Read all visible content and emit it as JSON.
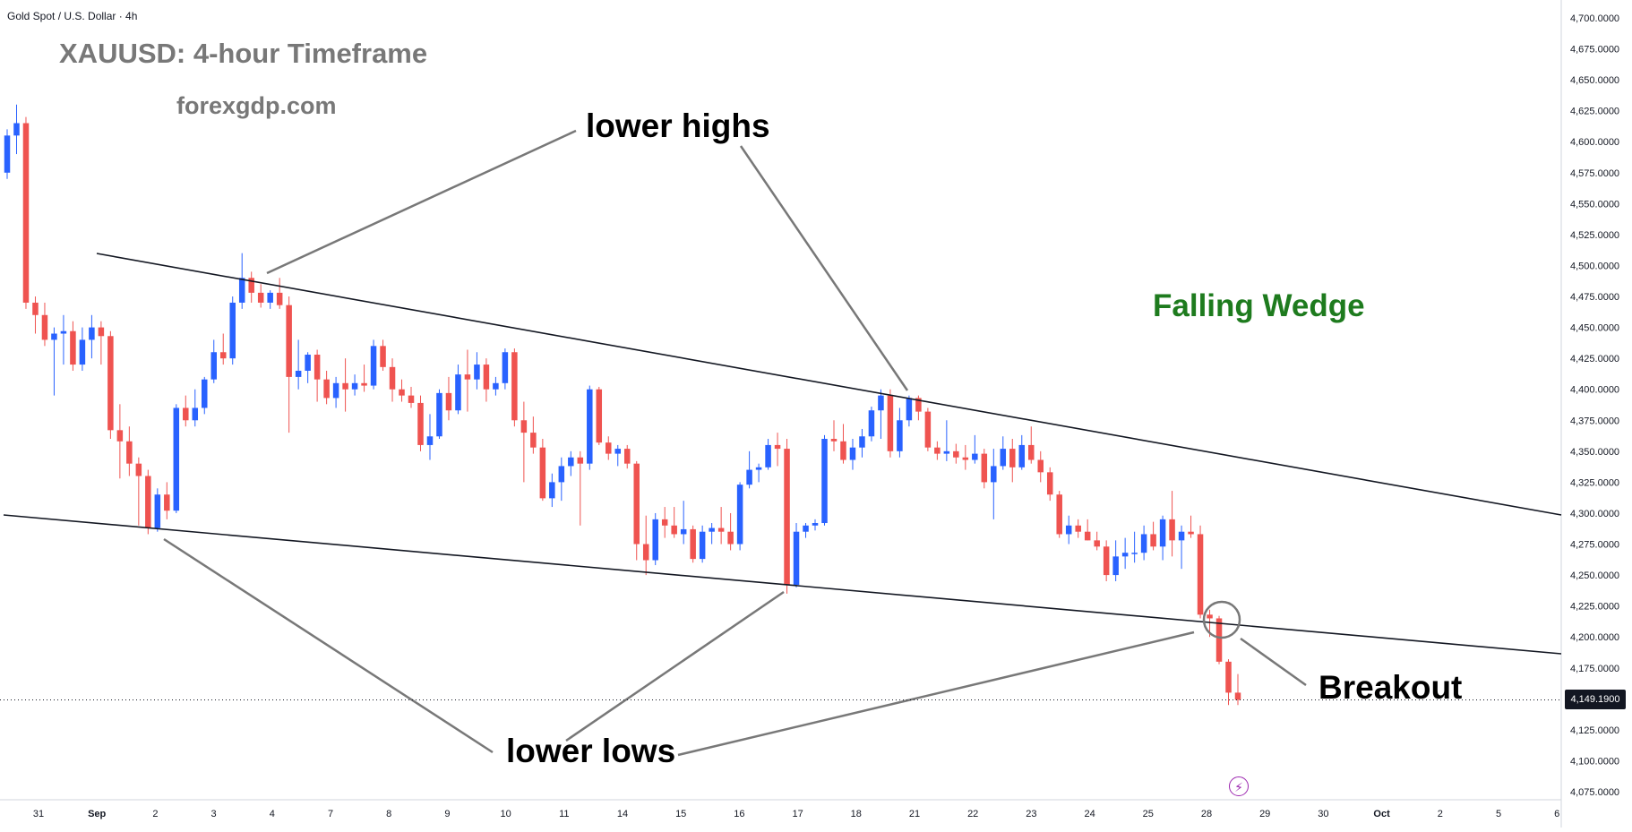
{
  "symbol_label": "Gold Spot / U.S. Dollar · 4h",
  "headline": "XAUUSD: 4-hour Timeframe",
  "website": "forexgdp.com",
  "annotations": {
    "lower_highs": "lower highs",
    "lower_lows": "lower lows",
    "breakout": "Breakout",
    "pattern": "Falling Wedge"
  },
  "current_price_label": "4,149.1900",
  "colors": {
    "bull": "#2962ff",
    "bear": "#ef5350",
    "pattern_text": "#1e7b1e",
    "annotation_line": "#787878",
    "trendline": "#131722"
  },
  "icons": [
    "lightning-icon"
  ],
  "chart_data": {
    "type": "candlestick",
    "title": "",
    "xlabel": "",
    "ylabel": "",
    "ylim": [
      4062.5,
      4712.5
    ],
    "y_ticks": [
      "4,075.0000",
      "4,100.0000",
      "4,125.0000",
      "4,150.0000",
      "4,175.0000",
      "4,200.0000",
      "4,225.0000",
      "4,250.0000",
      "4,275.0000",
      "4,300.0000",
      "4,325.0000",
      "4,350.0000",
      "4,375.0000",
      "4,400.0000",
      "4,425.0000",
      "4,450.0000",
      "4,475.0000",
      "4,500.0000",
      "4,525.0000",
      "4,550.0000",
      "4,575.0000",
      "4,600.0000",
      "4,625.0000",
      "4,650.0000",
      "4,675.0000",
      "4,700.0000"
    ],
    "x_ticks": [
      "31",
      "Sep",
      "2",
      "3",
      "4",
      "7",
      "8",
      "9",
      "10",
      "11",
      "14",
      "15",
      "16",
      "17",
      "18",
      "21",
      "22",
      "23",
      "24",
      "25",
      "28",
      "29",
      "30",
      "Oct",
      "2",
      "5",
      "6"
    ],
    "grid": false,
    "current_price": 4149.19,
    "candles": [
      {
        "o": 4575,
        "h": 4610,
        "l": 4570,
        "c": 4605
      },
      {
        "o": 4605,
        "h": 4630,
        "l": 4590,
        "c": 4615
      },
      {
        "o": 4615,
        "h": 4620,
        "l": 4465,
        "c": 4470
      },
      {
        "o": 4470,
        "h": 4475,
        "l": 4445,
        "c": 4460
      },
      {
        "o": 4460,
        "h": 4470,
        "l": 4435,
        "c": 4440
      },
      {
        "o": 4440,
        "h": 4450,
        "l": 4395,
        "c": 4445
      },
      {
        "o": 4445,
        "h": 4460,
        "l": 4420,
        "c": 4447
      },
      {
        "o": 4447,
        "h": 4455,
        "l": 4415,
        "c": 4420
      },
      {
        "o": 4420,
        "h": 4450,
        "l": 4415,
        "c": 4440
      },
      {
        "o": 4440,
        "h": 4460,
        "l": 4425,
        "c": 4450
      },
      {
        "o": 4450,
        "h": 4455,
        "l": 4420,
        "c": 4443
      },
      {
        "o": 4443,
        "h": 4447,
        "l": 4360,
        "c": 4367
      },
      {
        "o": 4367,
        "h": 4388,
        "l": 4328,
        "c": 4358
      },
      {
        "o": 4358,
        "h": 4370,
        "l": 4330,
        "c": 4340
      },
      {
        "o": 4340,
        "h": 4345,
        "l": 4290,
        "c": 4330
      },
      {
        "o": 4330,
        "h": 4335,
        "l": 4283,
        "c": 4288
      },
      {
        "o": 4288,
        "h": 4320,
        "l": 4285,
        "c": 4315
      },
      {
        "o": 4315,
        "h": 4325,
        "l": 4295,
        "c": 4302
      },
      {
        "o": 4302,
        "h": 4388,
        "l": 4300,
        "c": 4385
      },
      {
        "o": 4385,
        "h": 4395,
        "l": 4370,
        "c": 4375
      },
      {
        "o": 4375,
        "h": 4400,
        "l": 4370,
        "c": 4385
      },
      {
        "o": 4385,
        "h": 4410,
        "l": 4380,
        "c": 4408
      },
      {
        "o": 4408,
        "h": 4440,
        "l": 4405,
        "c": 4430
      },
      {
        "o": 4430,
        "h": 4445,
        "l": 4420,
        "c": 4425
      },
      {
        "o": 4425,
        "h": 4475,
        "l": 4420,
        "c": 4470
      },
      {
        "o": 4470,
        "h": 4510,
        "l": 4465,
        "c": 4490
      },
      {
        "o": 4490,
        "h": 4495,
        "l": 4470,
        "c": 4478
      },
      {
        "o": 4478,
        "h": 4485,
        "l": 4466,
        "c": 4470
      },
      {
        "o": 4470,
        "h": 4480,
        "l": 4465,
        "c": 4478
      },
      {
        "o": 4478,
        "h": 4490,
        "l": 4465,
        "c": 4468
      },
      {
        "o": 4468,
        "h": 4475,
        "l": 4365,
        "c": 4410
      },
      {
        "o": 4410,
        "h": 4440,
        "l": 4400,
        "c": 4415
      },
      {
        "o": 4415,
        "h": 4430,
        "l": 4405,
        "c": 4428
      },
      {
        "o": 4428,
        "h": 4432,
        "l": 4390,
        "c": 4408
      },
      {
        "o": 4408,
        "h": 4415,
        "l": 4388,
        "c": 4393
      },
      {
        "o": 4393,
        "h": 4410,
        "l": 4385,
        "c": 4405
      },
      {
        "o": 4405,
        "h": 4425,
        "l": 4382,
        "c": 4400
      },
      {
        "o": 4400,
        "h": 4412,
        "l": 4395,
        "c": 4405
      },
      {
        "o": 4405,
        "h": 4420,
        "l": 4398,
        "c": 4403
      },
      {
        "o": 4403,
        "h": 4440,
        "l": 4400,
        "c": 4435
      },
      {
        "o": 4435,
        "h": 4440,
        "l": 4415,
        "c": 4418
      },
      {
        "o": 4418,
        "h": 4425,
        "l": 4390,
        "c": 4400
      },
      {
        "o": 4400,
        "h": 4408,
        "l": 4390,
        "c": 4395
      },
      {
        "o": 4395,
        "h": 4402,
        "l": 4385,
        "c": 4389
      },
      {
        "o": 4389,
        "h": 4395,
        "l": 4350,
        "c": 4355
      },
      {
        "o": 4355,
        "h": 4380,
        "l": 4343,
        "c": 4362
      },
      {
        "o": 4362,
        "h": 4400,
        "l": 4360,
        "c": 4397
      },
      {
        "o": 4397,
        "h": 4410,
        "l": 4375,
        "c": 4383
      },
      {
        "o": 4383,
        "h": 4420,
        "l": 4380,
        "c": 4412
      },
      {
        "o": 4412,
        "h": 4432,
        "l": 4382,
        "c": 4408
      },
      {
        "o": 4408,
        "h": 4430,
        "l": 4400,
        "c": 4420
      },
      {
        "o": 4420,
        "h": 4425,
        "l": 4390,
        "c": 4400
      },
      {
        "o": 4400,
        "h": 4410,
        "l": 4395,
        "c": 4405
      },
      {
        "o": 4405,
        "h": 4433,
        "l": 4400,
        "c": 4430
      },
      {
        "o": 4430,
        "h": 4433,
        "l": 4370,
        "c": 4375
      },
      {
        "o": 4375,
        "h": 4390,
        "l": 4325,
        "c": 4365
      },
      {
        "o": 4365,
        "h": 4378,
        "l": 4348,
        "c": 4353
      },
      {
        "o": 4353,
        "h": 4360,
        "l": 4310,
        "c": 4312
      },
      {
        "o": 4312,
        "h": 4332,
        "l": 4305,
        "c": 4325
      },
      {
        "o": 4325,
        "h": 4345,
        "l": 4310,
        "c": 4338
      },
      {
        "o": 4338,
        "h": 4350,
        "l": 4330,
        "c": 4345
      },
      {
        "o": 4345,
        "h": 4350,
        "l": 4290,
        "c": 4340
      },
      {
        "o": 4340,
        "h": 4403,
        "l": 4335,
        "c": 4400
      },
      {
        "o": 4400,
        "h": 4402,
        "l": 4355,
        "c": 4357
      },
      {
        "o": 4357,
        "h": 4362,
        "l": 4343,
        "c": 4348
      },
      {
        "o": 4348,
        "h": 4355,
        "l": 4338,
        "c": 4352
      },
      {
        "o": 4352,
        "h": 4355,
        "l": 4336,
        "c": 4340
      },
      {
        "o": 4340,
        "h": 4342,
        "l": 4262,
        "c": 4275
      },
      {
        "o": 4275,
        "h": 4298,
        "l": 4250,
        "c": 4262
      },
      {
        "o": 4262,
        "h": 4300,
        "l": 4258,
        "c": 4295
      },
      {
        "o": 4295,
        "h": 4305,
        "l": 4280,
        "c": 4290
      },
      {
        "o": 4290,
        "h": 4305,
        "l": 4280,
        "c": 4283
      },
      {
        "o": 4283,
        "h": 4310,
        "l": 4275,
        "c": 4287
      },
      {
        "o": 4287,
        "h": 4290,
        "l": 4260,
        "c": 4263
      },
      {
        "o": 4263,
        "h": 4290,
        "l": 4260,
        "c": 4285
      },
      {
        "o": 4285,
        "h": 4292,
        "l": 4275,
        "c": 4288
      },
      {
        "o": 4288,
        "h": 4305,
        "l": 4275,
        "c": 4285
      },
      {
        "o": 4285,
        "h": 4300,
        "l": 4270,
        "c": 4275
      },
      {
        "o": 4275,
        "h": 4325,
        "l": 4270,
        "c": 4323
      },
      {
        "o": 4323,
        "h": 4350,
        "l": 4320,
        "c": 4335
      },
      {
        "o": 4335,
        "h": 4340,
        "l": 4325,
        "c": 4337
      },
      {
        "o": 4337,
        "h": 4360,
        "l": 4335,
        "c": 4355
      },
      {
        "o": 4355,
        "h": 4365,
        "l": 4338,
        "c": 4352
      },
      {
        "o": 4352,
        "h": 4360,
        "l": 4235,
        "c": 4242
      },
      {
        "o": 4242,
        "h": 4292,
        "l": 4240,
        "c": 4285
      },
      {
        "o": 4285,
        "h": 4292,
        "l": 4280,
        "c": 4290
      },
      {
        "o": 4290,
        "h": 4295,
        "l": 4286,
        "c": 4292
      },
      {
        "o": 4292,
        "h": 4363,
        "l": 4290,
        "c": 4360
      },
      {
        "o": 4360,
        "h": 4375,
        "l": 4350,
        "c": 4358
      },
      {
        "o": 4358,
        "h": 4372,
        "l": 4340,
        "c": 4343
      },
      {
        "o": 4343,
        "h": 4360,
        "l": 4335,
        "c": 4353
      },
      {
        "o": 4353,
        "h": 4368,
        "l": 4345,
        "c": 4362
      },
      {
        "o": 4362,
        "h": 4386,
        "l": 4358,
        "c": 4383
      },
      {
        "o": 4383,
        "h": 4400,
        "l": 4360,
        "c": 4395
      },
      {
        "o": 4395,
        "h": 4400,
        "l": 4345,
        "c": 4350
      },
      {
        "o": 4350,
        "h": 4385,
        "l": 4345,
        "c": 4375
      },
      {
        "o": 4375,
        "h": 4395,
        "l": 4370,
        "c": 4393
      },
      {
        "o": 4393,
        "h": 4395,
        "l": 4375,
        "c": 4382
      },
      {
        "o": 4382,
        "h": 4385,
        "l": 4350,
        "c": 4353
      },
      {
        "o": 4353,
        "h": 4358,
        "l": 4343,
        "c": 4348
      },
      {
        "o": 4348,
        "h": 4375,
        "l": 4342,
        "c": 4350
      },
      {
        "o": 4350,
        "h": 4356,
        "l": 4340,
        "c": 4345
      },
      {
        "o": 4345,
        "h": 4355,
        "l": 4335,
        "c": 4343
      },
      {
        "o": 4343,
        "h": 4363,
        "l": 4340,
        "c": 4348
      },
      {
        "o": 4348,
        "h": 4352,
        "l": 4320,
        "c": 4325
      },
      {
        "o": 4325,
        "h": 4352,
        "l": 4295,
        "c": 4338
      },
      {
        "o": 4338,
        "h": 4362,
        "l": 4335,
        "c": 4352
      },
      {
        "o": 4352,
        "h": 4360,
        "l": 4325,
        "c": 4337
      },
      {
        "o": 4337,
        "h": 4363,
        "l": 4335,
        "c": 4355
      },
      {
        "o": 4355,
        "h": 4370,
        "l": 4340,
        "c": 4343
      },
      {
        "o": 4343,
        "h": 4350,
        "l": 4325,
        "c": 4333
      },
      {
        "o": 4333,
        "h": 4337,
        "l": 4310,
        "c": 4315
      },
      {
        "o": 4315,
        "h": 4318,
        "l": 4280,
        "c": 4283
      },
      {
        "o": 4283,
        "h": 4298,
        "l": 4275,
        "c": 4290
      },
      {
        "o": 4290,
        "h": 4295,
        "l": 4280,
        "c": 4285
      },
      {
        "o": 4285,
        "h": 4295,
        "l": 4278,
        "c": 4278
      },
      {
        "o": 4278,
        "h": 4285,
        "l": 4270,
        "c": 4273
      },
      {
        "o": 4273,
        "h": 4278,
        "l": 4245,
        "c": 4250
      },
      {
        "o": 4250,
        "h": 4278,
        "l": 4245,
        "c": 4265
      },
      {
        "o": 4265,
        "h": 4280,
        "l": 4255,
        "c": 4268
      },
      {
        "o": 4268,
        "h": 4285,
        "l": 4260,
        "c": 4268
      },
      {
        "o": 4268,
        "h": 4290,
        "l": 4262,
        "c": 4283
      },
      {
        "o": 4283,
        "h": 4293,
        "l": 4270,
        "c": 4273
      },
      {
        "o": 4273,
        "h": 4298,
        "l": 4262,
        "c": 4295
      },
      {
        "o": 4295,
        "h": 4318,
        "l": 4265,
        "c": 4278
      },
      {
        "o": 4278,
        "h": 4290,
        "l": 4255,
        "c": 4285
      },
      {
        "o": 4285,
        "h": 4298,
        "l": 4280,
        "c": 4283
      },
      {
        "o": 4283,
        "h": 4290,
        "l": 4215,
        "c": 4218
      },
      {
        "o": 4218,
        "h": 4222,
        "l": 4200,
        "c": 4215
      },
      {
        "o": 4215,
        "h": 4217,
        "l": 4178,
        "c": 4180
      },
      {
        "o": 4180,
        "h": 4182,
        "l": 4145,
        "c": 4155
      },
      {
        "o": 4155,
        "h": 4170,
        "l": 4145,
        "c": 4149.19
      }
    ]
  }
}
